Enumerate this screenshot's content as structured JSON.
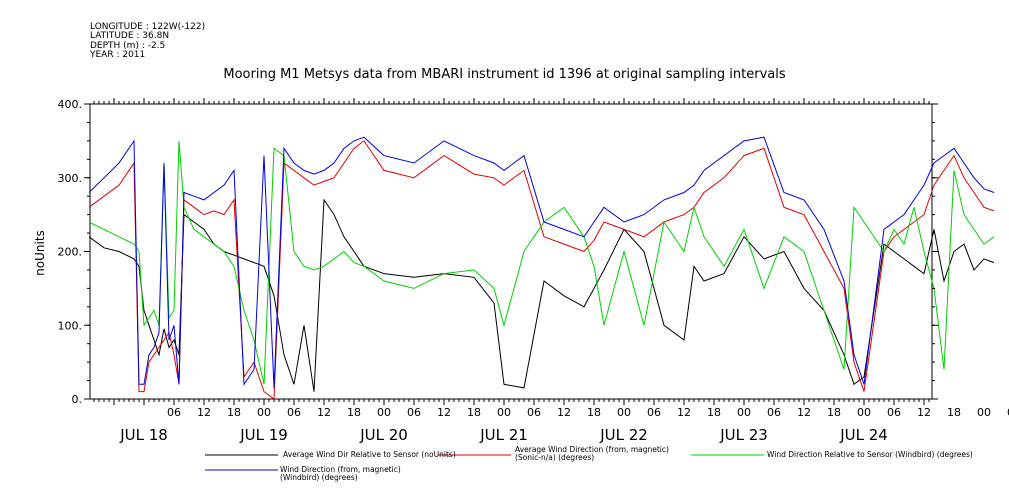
{
  "header": {
    "longitude": "LONGITUDE : 122W(-122)",
    "latitude": "LATITUDE : 36.8N",
    "depth": "DEPTH (m) : -2.5",
    "year": "YEAR : 2011"
  },
  "chart_data": {
    "type": "line",
    "title": "Mooring M1 Metsys data from MBARI instrument id 1396 at original sampling intervals",
    "ylabel": "noUnits",
    "ylim": [
      0,
      400
    ],
    "y_ticks": [
      0,
      100,
      200,
      300,
      400
    ],
    "y_tick_labels": [
      "0.",
      "100.",
      "200.",
      "300.",
      "400."
    ],
    "x_unit": "hours since JUL 18 00:00",
    "xlim": [
      -12,
      170
    ],
    "hour_ticks": [
      "06",
      "12",
      "18",
      "00",
      "06",
      "12",
      "18",
      "00",
      "06",
      "12",
      "18",
      "00",
      "06",
      "12",
      "18",
      "00",
      "06",
      "12",
      "18",
      "00",
      "06",
      "12",
      "18",
      "00",
      "06",
      "12",
      "18",
      "00",
      "06",
      "12",
      "18",
      "00"
    ],
    "day_labels": [
      "JUL 18",
      "JUL 19",
      "JUL 20",
      "JUL 21",
      "JUL 22",
      "JUL 23",
      "JUL 24"
    ],
    "grid": false,
    "legend_position": "bottom",
    "series": [
      {
        "name": "Average Wind Dir Relative to Sensor (noUnits)",
        "color": "#000000",
        "x": [
          -11,
          -8,
          -5,
          -2,
          -1,
          0,
          1,
          2,
          3,
          4,
          5,
          6,
          7,
          8,
          10,
          12,
          14,
          16,
          18,
          20,
          22,
          24,
          26,
          28,
          30,
          32,
          34,
          36,
          38,
          40,
          42,
          44,
          48,
          54,
          60,
          66,
          70,
          72,
          76,
          80,
          84,
          88,
          90,
          92,
          96,
          100,
          104,
          108,
          110,
          112,
          116,
          120,
          124,
          128,
          132,
          136,
          140,
          142,
          144,
          148,
          150,
          152,
          154,
          156,
          158,
          160,
          162,
          164,
          166,
          168,
          170
        ],
        "values": [
          220,
          205,
          200,
          190,
          180,
          120,
          100,
          80,
          60,
          95,
          70,
          80,
          60,
          250,
          240,
          230,
          210,
          200,
          195,
          190,
          185,
          180,
          140,
          60,
          20,
          100,
          10,
          270,
          250,
          220,
          200,
          180,
          170,
          165,
          170,
          165,
          130,
          20,
          15,
          160,
          140,
          125,
          150,
          175,
          230,
          200,
          100,
          80,
          180,
          160,
          170,
          220,
          190,
          200,
          150,
          120,
          60,
          20,
          30,
          210,
          200,
          190,
          180,
          170,
          230,
          160,
          200,
          210,
          175,
          190,
          185
        ]
      },
      {
        "name": "Average Wind Direction (from, magnetic) (Sonic-n/a) (degrees)",
        "color": "#e00000",
        "x": [
          -11,
          -8,
          -5,
          -2,
          -1,
          0,
          1,
          2,
          3,
          4,
          5,
          6,
          7,
          8,
          10,
          12,
          14,
          16,
          18,
          20,
          22,
          24,
          26,
          28,
          30,
          32,
          34,
          36,
          38,
          40,
          42,
          44,
          48,
          54,
          60,
          66,
          70,
          72,
          76,
          80,
          84,
          88,
          90,
          92,
          96,
          100,
          104,
          108,
          110,
          112,
          116,
          120,
          124,
          128,
          132,
          136,
          140,
          142,
          144,
          148,
          150,
          152,
          154,
          156,
          158,
          160,
          162,
          164,
          166,
          168,
          170
        ],
        "values": [
          260,
          275,
          290,
          320,
          10,
          10,
          50,
          60,
          70,
          80,
          90,
          60,
          20,
          270,
          260,
          250,
          255,
          250,
          270,
          30,
          50,
          10,
          0,
          320,
          310,
          300,
          290,
          295,
          300,
          320,
          340,
          350,
          310,
          300,
          330,
          305,
          300,
          290,
          310,
          220,
          210,
          200,
          215,
          240,
          230,
          220,
          240,
          250,
          260,
          280,
          300,
          330,
          340,
          260,
          250,
          200,
          150,
          50,
          10,
          200,
          220,
          230,
          240,
          250,
          290,
          310,
          330,
          300,
          280,
          260,
          255
        ]
      },
      {
        "name": "Wind Direction Relative to Sensor (Windbird) (degrees)",
        "color": "#00d000",
        "x": [
          -11,
          -8,
          -5,
          -2,
          -1,
          0,
          1,
          2,
          3,
          4,
          5,
          6,
          7,
          8,
          10,
          12,
          14,
          16,
          18,
          20,
          22,
          24,
          26,
          28,
          30,
          32,
          34,
          36,
          38,
          40,
          42,
          44,
          48,
          54,
          60,
          66,
          70,
          72,
          76,
          80,
          84,
          88,
          90,
          92,
          96,
          100,
          104,
          108,
          110,
          112,
          116,
          120,
          124,
          128,
          132,
          136,
          140,
          142,
          144,
          148,
          150,
          152,
          154,
          156,
          158,
          160,
          162,
          164,
          166,
          168,
          170
        ],
        "values": [
          240,
          230,
          220,
          210,
          200,
          100,
          110,
          120,
          100,
          320,
          110,
          120,
          350,
          260,
          230,
          220,
          210,
          200,
          180,
          120,
          80,
          20,
          340,
          330,
          200,
          180,
          175,
          180,
          190,
          200,
          185,
          180,
          160,
          150,
          170,
          175,
          150,
          100,
          200,
          240,
          260,
          220,
          180,
          100,
          200,
          100,
          240,
          200,
          260,
          220,
          180,
          230,
          150,
          220,
          200,
          120,
          40,
          260,
          240,
          200,
          230,
          210,
          260,
          200,
          150,
          40,
          310,
          250,
          230,
          210,
          220
        ]
      },
      {
        "name": "Wind Direction (from, magnetic) (Windbird) (degrees)",
        "color": "#0000e0",
        "x": [
          -11,
          -8,
          -5,
          -2,
          -1,
          0,
          1,
          2,
          3,
          4,
          5,
          6,
          7,
          8,
          10,
          12,
          14,
          16,
          18,
          20,
          22,
          24,
          26,
          28,
          30,
          32,
          34,
          36,
          38,
          40,
          42,
          44,
          48,
          54,
          60,
          66,
          70,
          72,
          76,
          80,
          84,
          88,
          90,
          92,
          96,
          100,
          104,
          108,
          110,
          112,
          116,
          120,
          124,
          128,
          132,
          136,
          140,
          142,
          144,
          148,
          150,
          152,
          154,
          156,
          158,
          160,
          162,
          164,
          166,
          168,
          170
        ],
        "values": [
          280,
          300,
          320,
          350,
          20,
          20,
          60,
          70,
          90,
          320,
          80,
          100,
          20,
          280,
          275,
          270,
          280,
          290,
          310,
          20,
          40,
          330,
          15,
          340,
          320,
          310,
          305,
          310,
          320,
          340,
          350,
          355,
          330,
          320,
          350,
          330,
          320,
          310,
          330,
          240,
          230,
          220,
          240,
          260,
          240,
          250,
          270,
          280,
          290,
          310,
          330,
          350,
          355,
          280,
          270,
          230,
          160,
          60,
          20,
          230,
          240,
          250,
          270,
          290,
          320,
          330,
          340,
          320,
          300,
          285,
          280
        ]
      }
    ]
  }
}
